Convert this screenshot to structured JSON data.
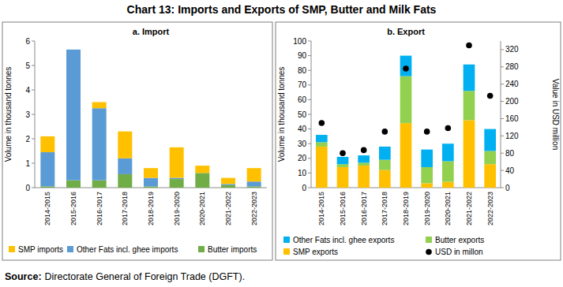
{
  "title": "Chart 13: Imports and Exports of SMP, Butter and Milk Fats",
  "source": {
    "label": "Source:",
    "text": "Directorate General of Foreign Trade (DGFT)."
  },
  "chart_data": [
    {
      "type": "bar",
      "title": "a. Import",
      "stacked": true,
      "grid": false,
      "legend": "bottom",
      "ylabel": "Volume in thousand tonnes",
      "categories": [
        "2014-2015",
        "2015-2016",
        "2016-2017",
        "2017-2018",
        "2018-2019",
        "2019-2020",
        "2020-2021",
        "2021-2022",
        "2022-2023"
      ],
      "ylim": [
        0,
        6
      ],
      "yticks": [
        0,
        1,
        2,
        3,
        4,
        5,
        6
      ],
      "series": [
        {
          "name": "Butter imports",
          "color": "#70ad47",
          "values": [
            0.05,
            0.3,
            0.3,
            0.55,
            0.05,
            0.35,
            0.6,
            0.1,
            0.05
          ]
        },
        {
          "name": "Other Fats incl. ghee imports",
          "color": "#5b9bd5",
          "values": [
            1.4,
            5.35,
            2.95,
            0.65,
            0.35,
            0.05,
            0,
            0.05,
            0.2
          ]
        },
        {
          "name": "SMP imports",
          "color": "#ffc000",
          "values": [
            0.65,
            0,
            0.25,
            1.1,
            0.4,
            1.25,
            0.3,
            0.25,
            0.55
          ]
        }
      ]
    },
    {
      "type": "bar",
      "title": "b. Export",
      "stacked": true,
      "grid": false,
      "legend": "bottom",
      "ylabel": "Volume in thousand tonnes",
      "y2label": "Value in USD million",
      "categories": [
        "2014-2015",
        "2015-2016",
        "2016-2017",
        "2017-2018",
        "2018-2019",
        "2019-2020",
        "2020-2021",
        "2021-2022",
        "2022-2023"
      ],
      "ylim": [
        0,
        100
      ],
      "yticks": [
        0,
        10,
        20,
        30,
        40,
        50,
        60,
        70,
        80,
        90,
        100
      ],
      "y2lim": [
        0,
        340
      ],
      "y2ticks": [
        0,
        40,
        80,
        120,
        160,
        200,
        240,
        280,
        320
      ],
      "series": [
        {
          "name": "SMP exports",
          "color": "#ffc000",
          "values": [
            28,
            14,
            15,
            12,
            44,
            3,
            4,
            46,
            16
          ]
        },
        {
          "name": "Butter exports",
          "color": "#92d050",
          "values": [
            3,
            2,
            2,
            7,
            32,
            11,
            14,
            20,
            9
          ]
        },
        {
          "name": "Other Fats incl. ghee exports",
          "color": "#00b0f0",
          "values": [
            5,
            5,
            5,
            9,
            14,
            12,
            12,
            18,
            15
          ]
        },
        {
          "name": "USD in millon",
          "type": "scatter",
          "axis": "y2",
          "marker": "circle",
          "color": "#000000",
          "values": [
            150,
            80,
            87,
            130,
            276,
            130,
            138,
            330,
            213
          ]
        }
      ]
    }
  ]
}
